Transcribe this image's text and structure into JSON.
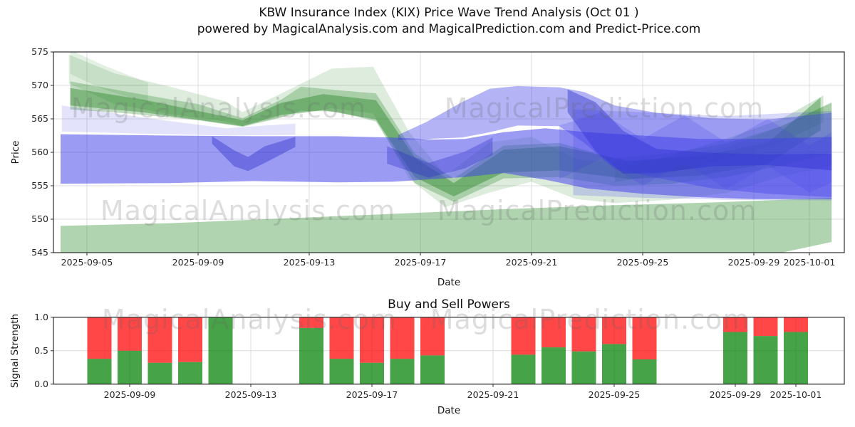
{
  "title": {
    "line1": "KBW Insurance Index (KIX) Price Wave Trend Analysis (Oct 01 )",
    "line2": "powered by MagicalAnalysis.com and MagicalPrediction.com and Predict-Price.com"
  },
  "watermark": {
    "analysis": "MagicalAnalysis.com",
    "prediction": "MagicalPrediction.com"
  },
  "colors": {
    "band_green": "#2e8b2e",
    "band_green_dark": "#1f7f1f",
    "band_green_bottom": "#50a050",
    "band_blue": "#4040e8",
    "band_blue_dark": "#2525c8",
    "bar_buy": "#008000",
    "bar_sell": "#ff0000",
    "grid": "#dcdcdc",
    "spine": "#2b2b2b"
  },
  "chart_data": [
    {
      "type": "area",
      "name": "price_wave",
      "ylabel": "Price",
      "xlabel": "Date",
      "ylim": [
        545,
        575
      ],
      "grid": true,
      "yticks": [
        545,
        550,
        555,
        560,
        565,
        570,
        575
      ],
      "xticks": [
        {
          "label": "2025-09-05",
          "day": 2
        },
        {
          "label": "2025-09-09",
          "day": 6
        },
        {
          "label": "2025-09-13",
          "day": 10
        },
        {
          "label": "2025-09-17",
          "day": 14
        },
        {
          "label": "2025-09-21",
          "day": 18
        },
        {
          "label": "2025-09-25",
          "day": 22
        },
        {
          "label": "2025-09-29",
          "day": 26
        },
        {
          "label": "2025-10-01",
          "day": 28
        }
      ],
      "day_zero": "2025-09-03",
      "bands": [
        {
          "name": "support-band-bottom",
          "color": "#50a050",
          "opacity": 0.45,
          "points": [
            [
              1.05,
              549.0,
              544.2
            ],
            [
              5,
              549.4,
              544.2
            ],
            [
              9,
              550.1,
              544.2
            ],
            [
              13,
              550.8,
              544.2
            ],
            [
              17,
              551.5,
              544.2
            ],
            [
              21,
              552.1,
              544.2
            ],
            [
              24.5,
              552.5,
              544.2
            ],
            [
              27,
              552.9,
              545.0
            ],
            [
              28.8,
              553.2,
              546.6
            ]
          ]
        },
        {
          "name": "green-wide-light",
          "color": "#2e8b2e",
          "opacity": 0.16,
          "points": [
            [
              1.35,
              574.6,
              570.3
            ],
            [
              3,
              571.8,
              567.2
            ],
            [
              5,
              569.8,
              565.7
            ],
            [
              7,
              567.6,
              564.6
            ],
            [
              7.6,
              566.0,
              563.9
            ],
            [
              9,
              568.8,
              565.3
            ],
            [
              10.8,
              572.5,
              566.6
            ],
            [
              12.3,
              572.8,
              565.8
            ],
            [
              13.6,
              563.0,
              556.0
            ],
            [
              14.9,
              556.5,
              551.8
            ],
            [
              16.5,
              561.5,
              554.0
            ],
            [
              18,
              562.3,
              555.6
            ],
            [
              19.6,
              559.0,
              553.0
            ],
            [
              21,
              558.4,
              552.4
            ],
            [
              23,
              559.2,
              552.9
            ],
            [
              25,
              560.7,
              553.9
            ],
            [
              27,
              563.9,
              556.4
            ],
            [
              28.8,
              567.5,
              558.0
            ]
          ]
        },
        {
          "name": "green-mid",
          "color": "#2e8b2e",
          "opacity": 0.3,
          "points": [
            [
              1.4,
              570.6,
              566.4
            ],
            [
              3.5,
              569.0,
              565.8
            ],
            [
              6,
              567.2,
              564.8
            ],
            [
              7.6,
              565.1,
              563.8
            ],
            [
              9,
              567.9,
              565.2
            ],
            [
              9.7,
              569.8,
              566.2
            ],
            [
              11,
              569.3,
              566.1
            ],
            [
              12.4,
              568.8,
              564.6
            ],
            [
              13.8,
              559.8,
              555.4
            ],
            [
              15.2,
              556.1,
              552.6
            ],
            [
              17,
              561.0,
              556.1
            ],
            [
              19,
              561.4,
              556.3
            ],
            [
              21,
              559.1,
              555.0
            ],
            [
              23,
              559.9,
              555.3
            ],
            [
              25,
              561.3,
              556.3
            ],
            [
              27,
              563.9,
              558.0
            ],
            [
              28.8,
              567.4,
              560.0
            ]
          ]
        },
        {
          "name": "green-core-dark",
          "color": "#1f7f1f",
          "opacity": 0.4,
          "points": [
            [
              1.4,
              569.6,
              567.0
            ],
            [
              4,
              567.9,
              566.0
            ],
            [
              7.6,
              564.8,
              563.9
            ],
            [
              9,
              567.4,
              565.6
            ],
            [
              10.5,
              568.7,
              566.3
            ],
            [
              12.4,
              567.8,
              564.9
            ],
            [
              13.8,
              559.2,
              556.3
            ],
            [
              15.2,
              555.4,
              553.4
            ],
            [
              17,
              560.4,
              557.0
            ],
            [
              19,
              560.9,
              557.3
            ],
            [
              21.5,
              558.7,
              556.0
            ],
            [
              24,
              559.4,
              556.5
            ],
            [
              26.5,
              561.4,
              558.3
            ],
            [
              28.4,
              568.2,
              563.3
            ]
          ]
        },
        {
          "name": "green-topleft-wisp",
          "color": "#2e8b2e",
          "opacity": 0.13,
          "points": [
            [
              1.4,
              575.3,
              571.7
            ],
            [
              2.6,
              573.0,
              569.4
            ],
            [
              4.2,
              570.4,
              567.4
            ]
          ]
        },
        {
          "name": "green-right-streak",
          "color": "#2e8b2e",
          "opacity": 0.22,
          "points": [
            [
              21,
              557.5,
              555.5
            ],
            [
              23,
              559.5,
              557.0
            ],
            [
              25,
              562.0,
              559.0
            ],
            [
              27,
              565.0,
              561.5
            ],
            [
              28.5,
              568.5,
              564.5
            ]
          ]
        },
        {
          "name": "blue-left-light",
          "color": "#4040e8",
          "opacity": 0.15,
          "points": [
            [
              1.1,
              567.0,
              563.1
            ],
            [
              4,
              565.2,
              562.8
            ],
            [
              7,
              563.6,
              562.5
            ],
            [
              9.5,
              564.3,
              562.6
            ]
          ]
        },
        {
          "name": "blue-main",
          "color": "#4040e8",
          "opacity": 0.52,
          "points": [
            [
              1.05,
              562.7,
              555.3
            ],
            [
              5,
              562.5,
              555.4
            ],
            [
              8,
              562.4,
              555.7
            ],
            [
              11,
              562.4,
              555.5
            ],
            [
              13,
              562.2,
              555.6
            ],
            [
              14.5,
              561.9,
              556.0
            ],
            [
              15.6,
              562.0,
              556.3
            ],
            [
              17,
              563.0,
              556.9
            ],
            [
              18.5,
              563.6,
              555.9
            ],
            [
              20,
              563.0,
              554.6
            ],
            [
              22,
              562.5,
              553.8
            ],
            [
              24,
              562.0,
              553.3
            ],
            [
              26,
              562.0,
              553.0
            ],
            [
              28.8,
              562.3,
              553.0
            ]
          ]
        },
        {
          "name": "blue-hump",
          "color": "#4040e8",
          "opacity": 0.4,
          "points": [
            [
              13.2,
              562.6,
              561.8
            ],
            [
              14.2,
              564.5,
              562.0
            ],
            [
              15.5,
              567.5,
              562.2
            ],
            [
              16.5,
              569.5,
              563.0
            ],
            [
              17.5,
              569.9,
              564.0
            ],
            [
              19,
              569.7,
              563.9
            ],
            [
              19.9,
              569.0,
              561.4
            ],
            [
              21,
              567.0,
              557.5
            ],
            [
              22.5,
              565.9,
              556.2
            ],
            [
              24.5,
              565.1,
              554.6
            ],
            [
              26.5,
              564.9,
              553.8
            ],
            [
              28.8,
              565.9,
              553.3
            ]
          ]
        },
        {
          "name": "blue-notch-dark",
          "color": "#2525c8",
          "opacity": 0.38,
          "points": [
            [
              6.5,
              562.4,
              561.3
            ],
            [
              7.3,
              560.3,
              557.9
            ],
            [
              7.8,
              559.3,
              557.2
            ],
            [
              8.4,
              560.9,
              558.4
            ],
            [
              9.5,
              562.3,
              560.8
            ]
          ]
        },
        {
          "name": "blue-dip-dark",
          "color": "#2525c8",
          "opacity": 0.32,
          "points": [
            [
              12.8,
              560.9,
              558.3
            ],
            [
              14.3,
              558.4,
              556.2
            ],
            [
              15.6,
              560.1,
              557.6
            ],
            [
              16.6,
              562.2,
              559.6
            ]
          ]
        },
        {
          "name": "blue-posthump-dark",
          "color": "#2525c8",
          "opacity": 0.4,
          "points": [
            [
              19.3,
              569.4,
              566.0
            ],
            [
              20.3,
              567.5,
              560.2
            ],
            [
              21.3,
              563.2,
              556.8
            ],
            [
              22.5,
              560.5,
              556.9
            ],
            [
              24.5,
              559.9,
              557.9
            ],
            [
              26.5,
              559.7,
              558.1
            ],
            [
              28.8,
              559.8,
              557.3
            ]
          ]
        },
        {
          "name": "blue-right-wide-light",
          "color": "#4040e8",
          "opacity": 0.2,
          "points": [
            [
              19.5,
              566.4,
              553.6
            ],
            [
              22,
              566.0,
              553.2
            ],
            [
              25,
              565.4,
              552.9
            ],
            [
              28.8,
              566.2,
              552.8
            ]
          ]
        },
        {
          "name": "blue-right-zigzag",
          "color": "#4040e8",
          "opacity": 0.2,
          "points": [
            [
              19,
              564.0,
              556.0
            ],
            [
              20.5,
              566.0,
              559.0
            ],
            [
              22,
              562.0,
              555.0
            ],
            [
              23.5,
              565.5,
              558.5
            ],
            [
              25,
              561.5,
              554.5
            ],
            [
              26.5,
              565.0,
              558.0
            ],
            [
              28,
              561.0,
              554.0
            ],
            [
              28.8,
              563.0,
              555.5
            ]
          ]
        }
      ]
    },
    {
      "type": "bar",
      "name": "buy_sell_powers",
      "title": "Buy and Sell Powers",
      "ylabel": "Signal Strength",
      "xlabel": "Date",
      "ylim": [
        0.0,
        1.0
      ],
      "grid": true,
      "yticks": [
        {
          "label": "0.0",
          "value": 0.0
        },
        {
          "label": "0.5",
          "value": 0.5
        },
        {
          "label": "1.0",
          "value": 1.0
        }
      ],
      "xticks": [
        {
          "label": "2025-09-09",
          "day": 6
        },
        {
          "label": "2025-09-13",
          "day": 10
        },
        {
          "label": "2025-09-17",
          "day": 14
        },
        {
          "label": "2025-09-21",
          "day": 18
        },
        {
          "label": "2025-09-25",
          "day": 22
        },
        {
          "label": "2025-09-29",
          "day": 26
        },
        {
          "label": "2025-10-01",
          "day": 28
        }
      ],
      "day_zero": "2025-09-03",
      "bars": [
        {
          "date": "2025-09-08",
          "day": 5,
          "buy": 0.38,
          "sell": 0.62
        },
        {
          "date": "2025-09-09",
          "day": 6,
          "buy": 0.5,
          "sell": 0.5
        },
        {
          "date": "2025-09-10",
          "day": 7,
          "buy": 0.32,
          "sell": 0.68
        },
        {
          "date": "2025-09-11",
          "day": 8,
          "buy": 0.33,
          "sell": 0.67
        },
        {
          "date": "2025-09-12",
          "day": 9,
          "buy": 1.0,
          "sell": 0.0
        },
        {
          "date": "2025-09-15",
          "day": 12,
          "buy": 0.84,
          "sell": 0.16
        },
        {
          "date": "2025-09-16",
          "day": 13,
          "buy": 0.38,
          "sell": 0.62
        },
        {
          "date": "2025-09-17",
          "day": 14,
          "buy": 0.32,
          "sell": 0.68
        },
        {
          "date": "2025-09-18",
          "day": 15,
          "buy": 0.38,
          "sell": 0.62
        },
        {
          "date": "2025-09-19",
          "day": 16,
          "buy": 0.43,
          "sell": 0.57
        },
        {
          "date": "2025-09-22",
          "day": 19,
          "buy": 0.44,
          "sell": 0.56
        },
        {
          "date": "2025-09-23",
          "day": 20,
          "buy": 0.55,
          "sell": 0.45
        },
        {
          "date": "2025-09-24",
          "day": 21,
          "buy": 0.49,
          "sell": 0.51
        },
        {
          "date": "2025-09-25",
          "day": 22,
          "buy": 0.6,
          "sell": 0.4
        },
        {
          "date": "2025-09-26",
          "day": 23,
          "buy": 0.37,
          "sell": 0.63
        },
        {
          "date": "2025-09-29",
          "day": 26,
          "buy": 0.78,
          "sell": 0.22
        },
        {
          "date": "2025-09-30",
          "day": 27,
          "buy": 0.72,
          "sell": 0.28
        },
        {
          "date": "2025-10-01",
          "day": 28,
          "buy": 0.78,
          "sell": 0.22
        }
      ]
    }
  ]
}
